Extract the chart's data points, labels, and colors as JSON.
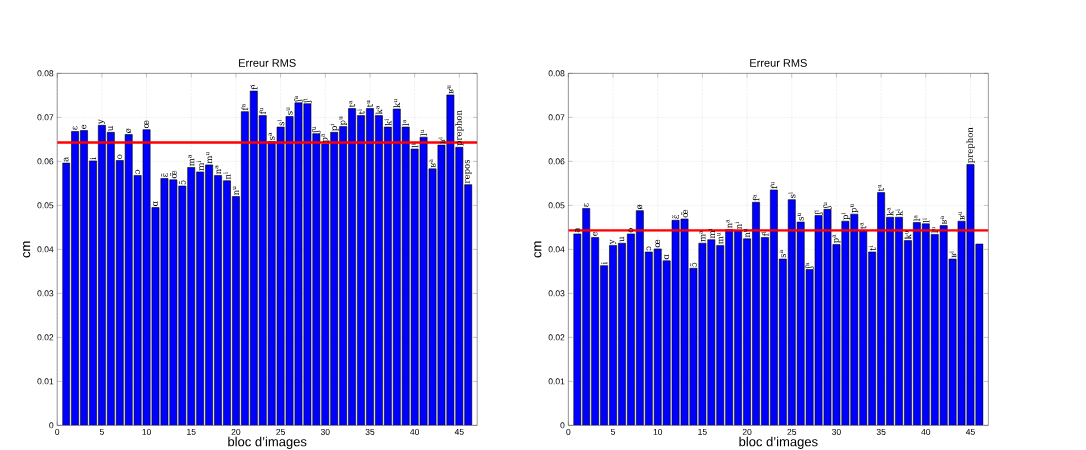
{
  "chart_data": [
    {
      "type": "bar",
      "title": "Erreur RMS",
      "xlabel": "bloc d’images",
      "ylabel": "cm",
      "color": "#0000ff",
      "grid": true,
      "x": [
        1,
        2,
        3,
        4,
        5,
        6,
        7,
        8,
        9,
        10,
        11,
        12,
        13,
        14,
        15,
        16,
        17,
        18,
        19,
        20,
        21,
        22,
        23,
        24,
        25,
        26,
        27,
        28,
        29,
        30,
        31,
        32,
        33,
        34,
        35,
        36,
        37,
        38,
        39,
        40,
        41,
        42,
        43,
        44,
        45,
        46
      ],
      "values": [
        0.0596,
        0.0668,
        0.067,
        0.0601,
        0.0682,
        0.0666,
        0.0602,
        0.0661,
        0.0568,
        0.0672,
        0.0495,
        0.0561,
        0.0558,
        0.0544,
        0.0586,
        0.0576,
        0.0592,
        0.0568,
        0.0556,
        0.052,
        0.0713,
        0.076,
        0.0704,
        0.0645,
        0.0678,
        0.0702,
        0.0733,
        0.0731,
        0.0663,
        0.064,
        0.0666,
        0.0679,
        0.072,
        0.0704,
        0.072,
        0.0704,
        0.0678,
        0.0719,
        0.0678,
        0.0628,
        0.0655,
        0.0583,
        0.0637,
        0.0751,
        0.0632,
        0.0547
      ],
      "xlim": [
        0,
        47
      ],
      "ylim": [
        0,
        0.08
      ],
      "xticks": [
        0,
        5,
        10,
        15,
        20,
        25,
        30,
        35,
        40,
        45
      ],
      "yticks": [
        0,
        0.01,
        0.02,
        0.03,
        0.04,
        0.05,
        0.06,
        0.07,
        0.08
      ],
      "ref_lines": [
        {
          "axis": "y",
          "value": 0.0643,
          "color": "#ff0000"
        }
      ],
      "annotations": [
        {
          "text": "a",
          "x": 1,
          "y": 0.0596
        },
        {
          "text": "ɛ",
          "x": 2,
          "y": 0.0668
        },
        {
          "text": "e",
          "x": 3,
          "y": 0.067
        },
        {
          "text": "i",
          "x": 4,
          "y": 0.0601
        },
        {
          "text": "y",
          "x": 5,
          "y": 0.0682
        },
        {
          "text": "u",
          "x": 6,
          "y": 0.0666
        },
        {
          "text": "o",
          "x": 7,
          "y": 0.0602
        },
        {
          "text": "ø",
          "x": 8,
          "y": 0.0661
        },
        {
          "text": "ɔ",
          "x": 9,
          "y": 0.0568
        },
        {
          "text": "œ",
          "x": 10,
          "y": 0.0672
        },
        {
          "text": "ɑ",
          "x": 11,
          "y": 0.0495
        },
        {
          "text": "ɛ̃",
          "x": 12,
          "y": 0.0561
        },
        {
          "text": "œ̃",
          "x": 13,
          "y": 0.0558
        },
        {
          "text": "ɔ̃",
          "x": 14,
          "y": 0.0544
        },
        {
          "text": "m$^{a}$",
          "x": 15,
          "y": 0.0586
        },
        {
          "text": "m$^{i}$",
          "x": 16,
          "y": 0.0576
        },
        {
          "text": "m$^{u}$",
          "x": 17,
          "y": 0.0592
        },
        {
          "text": "n$^{a}$",
          "x": 18,
          "y": 0.0568
        },
        {
          "text": "n$^{i}$",
          "x": 19,
          "y": 0.0556
        },
        {
          "text": "n$^{u}$",
          "x": 20,
          "y": 0.052
        },
        {
          "text": "f$^{a}$",
          "x": 21,
          "y": 0.0713
        },
        {
          "text": "f$^{i}$",
          "x": 22,
          "y": 0.076
        },
        {
          "text": "f$^{u}$",
          "x": 23,
          "y": 0.0704
        },
        {
          "text": "s$^{a}$",
          "x": 24,
          "y": 0.0645
        },
        {
          "text": "s$^{i}$",
          "x": 25,
          "y": 0.0678
        },
        {
          "text": "s$^{u}$",
          "x": 26,
          "y": 0.0702
        },
        {
          "text": "ʃ$^{a}$",
          "x": 27,
          "y": 0.0733
        },
        {
          "text": "ʃ$^{i}$",
          "x": 28,
          "y": 0.0731
        },
        {
          "text": "ʃ$^{u}$",
          "x": 29,
          "y": 0.0663
        },
        {
          "text": "p$^{a}$",
          "x": 30,
          "y": 0.064
        },
        {
          "text": "p$^{i}$",
          "x": 31,
          "y": 0.0666
        },
        {
          "text": "p$^{u}$",
          "x": 32,
          "y": 0.0679
        },
        {
          "text": "t$^{a}$",
          "x": 33,
          "y": 0.072
        },
        {
          "text": "t$^{i}$",
          "x": 34,
          "y": 0.0704
        },
        {
          "text": "t$^{u}$",
          "x": 35,
          "y": 0.072
        },
        {
          "text": "k$^{a}$",
          "x": 36,
          "y": 0.0704
        },
        {
          "text": "k$^{i}$",
          "x": 37,
          "y": 0.0678
        },
        {
          "text": "k$^{u}$",
          "x": 38,
          "y": 0.0719
        },
        {
          "text": "l$^{a}$",
          "x": 39,
          "y": 0.0678
        },
        {
          "text": "l$^{i}$",
          "x": 40,
          "y": 0.0628
        },
        {
          "text": "l$^{u}$",
          "x": 41,
          "y": 0.0655
        },
        {
          "text": "ʁ$^{a}$",
          "x": 42,
          "y": 0.0583
        },
        {
          "text": "ʁ$^{i}$",
          "x": 43,
          "y": 0.0637
        },
        {
          "text": "ʁ$^{u}$",
          "x": 44,
          "y": 0.0751
        },
        {
          "text": "prephon",
          "x": 45,
          "y": 0.0632
        },
        {
          "text": "repos",
          "x": 46,
          "y": 0.0547
        }
      ]
    },
    {
      "type": "bar",
      "title": "Erreur RMS",
      "xlabel": "bloc d’images",
      "ylabel": "cm",
      "color": "#0000ff",
      "grid": true,
      "x": [
        1,
        2,
        3,
        4,
        5,
        6,
        7,
        8,
        9,
        10,
        11,
        12,
        13,
        14,
        15,
        16,
        17,
        18,
        19,
        20,
        21,
        22,
        23,
        24,
        25,
        26,
        27,
        28,
        29,
        30,
        31,
        32,
        33,
        34,
        35,
        36,
        37,
        38,
        39,
        40,
        41,
        42,
        43,
        44,
        45,
        46
      ],
      "values": [
        0.0435,
        0.0493,
        0.0427,
        0.0363,
        0.0409,
        0.0414,
        0.0435,
        0.0488,
        0.0394,
        0.0401,
        0.0374,
        0.0466,
        0.0469,
        0.0357,
        0.0414,
        0.0422,
        0.0409,
        0.0445,
        0.0443,
        0.0424,
        0.0507,
        0.0427,
        0.0535,
        0.0378,
        0.0513,
        0.0462,
        0.0354,
        0.0477,
        0.0491,
        0.0411,
        0.0464,
        0.048,
        0.0443,
        0.0394,
        0.0529,
        0.0473,
        0.0473,
        0.042,
        0.0461,
        0.0458,
        0.0434,
        0.0454,
        0.0378,
        0.0464,
        0.0593,
        0.0412
      ],
      "xlim": [
        0,
        47
      ],
      "ylim": [
        0,
        0.08
      ],
      "xticks": [
        0,
        5,
        10,
        15,
        20,
        25,
        30,
        35,
        40,
        45
      ],
      "yticks": [
        0,
        0.01,
        0.02,
        0.03,
        0.04,
        0.05,
        0.06,
        0.07,
        0.08
      ],
      "ref_lines": [
        {
          "axis": "y",
          "value": 0.0443,
          "color": "#ff0000"
        }
      ],
      "annotations": [
        {
          "text": "a",
          "x": 1,
          "y": 0.0435
        },
        {
          "text": "ɛ",
          "x": 2,
          "y": 0.0493
        },
        {
          "text": "e",
          "x": 3,
          "y": 0.0427
        },
        {
          "text": "i",
          "x": 4,
          "y": 0.0363
        },
        {
          "text": "y",
          "x": 5,
          "y": 0.0409
        },
        {
          "text": "u",
          "x": 6,
          "y": 0.0414
        },
        {
          "text": "o",
          "x": 7,
          "y": 0.0435
        },
        {
          "text": "ø",
          "x": 8,
          "y": 0.0488
        },
        {
          "text": "ɔ",
          "x": 9,
          "y": 0.0394
        },
        {
          "text": "œ",
          "x": 10,
          "y": 0.0401
        },
        {
          "text": "ɑ",
          "x": 11,
          "y": 0.0374
        },
        {
          "text": "ɛ̃",
          "x": 12,
          "y": 0.0466
        },
        {
          "text": "œ̃",
          "x": 13,
          "y": 0.0469
        },
        {
          "text": "ɔ̃",
          "x": 14,
          "y": 0.0357
        },
        {
          "text": "m$^{a}$",
          "x": 15,
          "y": 0.0414
        },
        {
          "text": "m$^{i}$",
          "x": 16,
          "y": 0.0422
        },
        {
          "text": "m$^{u}$",
          "x": 17,
          "y": 0.0409
        },
        {
          "text": "n$^{a}$",
          "x": 18,
          "y": 0.0445
        },
        {
          "text": "n$^{i}$",
          "x": 19,
          "y": 0.0443
        },
        {
          "text": "n$^{u}$",
          "x": 20,
          "y": 0.0424
        },
        {
          "text": "f$^{a}$",
          "x": 21,
          "y": 0.0507
        },
        {
          "text": "f$^{i}$",
          "x": 22,
          "y": 0.0427
        },
        {
          "text": "f$^{u}$",
          "x": 23,
          "y": 0.0535
        },
        {
          "text": "s$^{a}$",
          "x": 24,
          "y": 0.0378
        },
        {
          "text": "s$^{i}$",
          "x": 25,
          "y": 0.0513
        },
        {
          "text": "s$^{u}$",
          "x": 26,
          "y": 0.0462
        },
        {
          "text": "ʃ$^{a}$",
          "x": 27,
          "y": 0.0354
        },
        {
          "text": "ʃ$^{i}$",
          "x": 28,
          "y": 0.0477
        },
        {
          "text": "ʃ$^{u}$",
          "x": 29,
          "y": 0.0491
        },
        {
          "text": "p$^{a}$",
          "x": 30,
          "y": 0.0411
        },
        {
          "text": "p$^{i}$",
          "x": 31,
          "y": 0.0464
        },
        {
          "text": "p$^{u}$",
          "x": 32,
          "y": 0.048
        },
        {
          "text": "t$^{a}$",
          "x": 33,
          "y": 0.0443
        },
        {
          "text": "t$^{i}$",
          "x": 34,
          "y": 0.0394
        },
        {
          "text": "t$^{u}$",
          "x": 35,
          "y": 0.0529
        },
        {
          "text": "k$^{a}$",
          "x": 36,
          "y": 0.0473
        },
        {
          "text": "k$^{i}$",
          "x": 37,
          "y": 0.0473
        },
        {
          "text": "k$^{u}$",
          "x": 38,
          "y": 0.042
        },
        {
          "text": "l$^{a}$",
          "x": 39,
          "y": 0.0461
        },
        {
          "text": "l$^{i}$",
          "x": 40,
          "y": 0.0458
        },
        {
          "text": "l$^{u}$",
          "x": 41,
          "y": 0.0434
        },
        {
          "text": "ʁ$^{a}$",
          "x": 42,
          "y": 0.0454
        },
        {
          "text": "ʁ$^{i}$",
          "x": 43,
          "y": 0.0378
        },
        {
          "text": "ʁ$^{u}$",
          "x": 44,
          "y": 0.0464
        },
        {
          "text": "prephon",
          "x": 45,
          "y": 0.0593
        }
      ]
    }
  ]
}
